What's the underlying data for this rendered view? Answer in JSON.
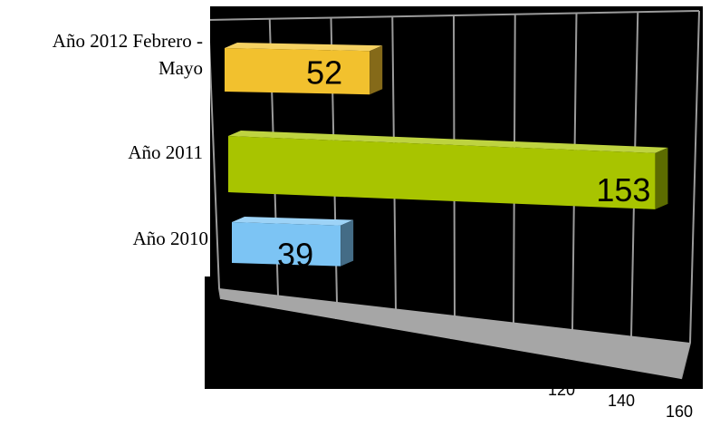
{
  "chart_data": {
    "type": "bar",
    "orientation": "horizontal",
    "style": "3d",
    "categories": [
      "Año 2012 Febrero - Mayo",
      "Año 2011",
      "Año 2010"
    ],
    "category_lines": [
      [
        "Año 2012 Febrero -",
        "Mayo"
      ],
      [
        "Año 2011"
      ],
      [
        "Año 2010"
      ]
    ],
    "values": [
      52,
      153,
      39
    ],
    "value_labels": [
      "52",
      "153",
      "39"
    ],
    "colors": [
      "#f2c12e",
      "#a8c400",
      "#7cc4f4"
    ],
    "xlim": [
      0,
      160
    ],
    "visible_ticks": [
      {
        "value": 120,
        "label": "120"
      },
      {
        "value": 140,
        "label": "140"
      },
      {
        "value": 160,
        "label": "160"
      }
    ],
    "grid": true,
    "background": "#000000",
    "floor_color": "#a6a6a6",
    "grid_color": "#9a9a9a"
  }
}
